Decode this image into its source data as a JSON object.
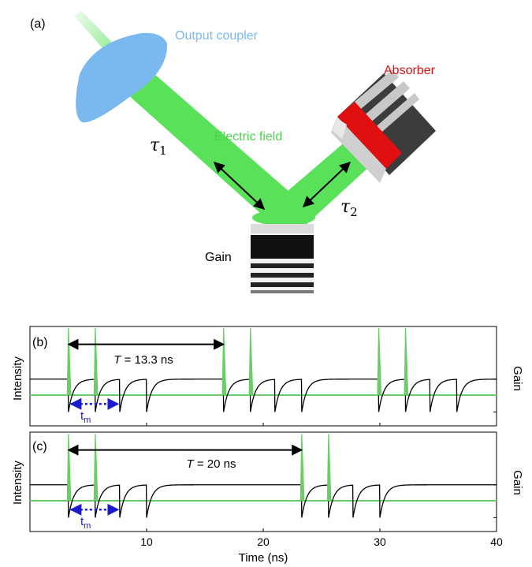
{
  "diagram": {
    "panel_label": "(a)",
    "labels": {
      "output_coupler": "Output coupler",
      "absorber": "Absorber",
      "electric_field": "Electric field",
      "gain": "Gain",
      "tau1_base": "τ",
      "tau1_sub": "1",
      "tau2_base": "τ",
      "tau2_sub": "2"
    }
  },
  "colors": {
    "beam": "#5ae15a",
    "coupler": "#7ab8f0",
    "absorber_red": "#e01010",
    "absorber_dark": "#404040",
    "absorber_light": "#c8c8c8",
    "tm_arrow": "#1a1ad0",
    "gain_line": "#6acd6a"
  },
  "chart_data": [
    {
      "type": "line",
      "panel_label": "(b)",
      "ylabel": "Intensity",
      "ylabel_right": "Gain",
      "x_range": [
        0,
        40
      ],
      "period_label": {
        "italic": "T",
        "rest": " = 13.3 ns"
      },
      "period_arrow": [
        3.3,
        16.6
      ],
      "tm_label": {
        "base": "t",
        "sub": "m"
      },
      "tm_arrow": [
        3.3,
        7.7
      ],
      "pulse_times": [
        3.3,
        5.6,
        16.6,
        18.9,
        29.9,
        32.2
      ],
      "gain_dip_times": [
        3.3,
        5.6,
        7.7,
        10.0,
        16.6,
        18.9,
        21.0,
        23.3,
        29.9,
        32.2,
        34.3,
        36.6
      ]
    },
    {
      "type": "line",
      "panel_label": "(c)",
      "ylabel": "Intensity",
      "ylabel_right": "Gain",
      "x_range": [
        0,
        40
      ],
      "period_label": {
        "italic": "T",
        "rest": " = 20 ns"
      },
      "period_arrow": [
        3.3,
        23.3
      ],
      "tm_label": {
        "base": "t",
        "sub": "m"
      },
      "tm_arrow": [
        3.3,
        7.7
      ],
      "pulse_times": [
        3.3,
        5.6,
        23.3,
        25.6
      ],
      "gain_dip_times": [
        3.3,
        5.6,
        7.7,
        10.0,
        23.3,
        25.6,
        27.7,
        30.0
      ]
    }
  ],
  "xaxis": {
    "label": "Time (ns)",
    "ticks": [
      {
        "value": 10,
        "label": "10"
      },
      {
        "value": 20,
        "label": "20"
      },
      {
        "value": 30,
        "label": "30"
      },
      {
        "value": 40,
        "label": "40"
      }
    ]
  }
}
